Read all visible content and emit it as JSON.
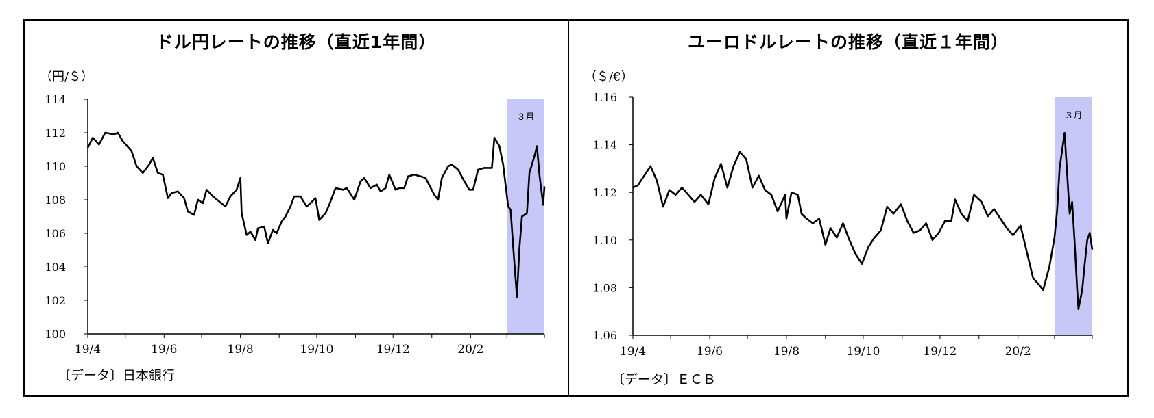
{
  "colors": {
    "line": "#000000",
    "highlight": "#c8c8f8",
    "axis": "#000000"
  },
  "chart_data": [
    {
      "type": "line",
      "title": "ドル円レートの推移（直近1年間）",
      "ylabel": "（円/＄）",
      "source": "〔データ〕日本銀行",
      "highlight_label": "３月",
      "highlight_range": [
        "2020-03-01",
        "2020-03-31"
      ],
      "y_ticks": [
        "114",
        "112",
        "110",
        "108",
        "106",
        "104",
        "102",
        "100"
      ],
      "ylim": [
        100,
        114
      ],
      "xlim": [
        "2019-04-01",
        "2020-03-31"
      ],
      "x_ticks": [
        {
          "label": "19/4",
          "date": "2019-04-01"
        },
        {
          "label": "19/6",
          "date": "2019-06-01"
        },
        {
          "label": "19/8",
          "date": "2019-08-01"
        },
        {
          "label": "19/10",
          "date": "2019-10-01"
        },
        {
          "label": "19/12",
          "date": "2019-12-01"
        },
        {
          "label": "20/2",
          "date": "2020-02-01"
        }
      ],
      "legend": "none",
      "grid": false,
      "series": [
        {
          "points": [
            [
              "2019-04-01",
              111.1
            ],
            [
              "2019-04-05",
              111.7
            ],
            [
              "2019-04-10",
              111.3
            ],
            [
              "2019-04-15",
              112.0
            ],
            [
              "2019-04-22",
              111.9
            ],
            [
              "2019-04-25",
              112.0
            ],
            [
              "2019-04-29",
              111.5
            ],
            [
              "2019-05-06",
              110.9
            ],
            [
              "2019-05-10",
              110.0
            ],
            [
              "2019-05-15",
              109.6
            ],
            [
              "2019-05-20",
              110.1
            ],
            [
              "2019-05-23",
              110.5
            ],
            [
              "2019-05-27",
              109.6
            ],
            [
              "2019-05-31",
              109.5
            ],
            [
              "2019-06-04",
              108.1
            ],
            [
              "2019-06-07",
              108.4
            ],
            [
              "2019-06-12",
              108.5
            ],
            [
              "2019-06-17",
              108.1
            ],
            [
              "2019-06-20",
              107.3
            ],
            [
              "2019-06-25",
              107.1
            ],
            [
              "2019-06-28",
              108.0
            ],
            [
              "2019-07-02",
              107.8
            ],
            [
              "2019-07-05",
              108.6
            ],
            [
              "2019-07-10",
              108.2
            ],
            [
              "2019-07-15",
              107.9
            ],
            [
              "2019-07-20",
              107.6
            ],
            [
              "2019-07-24",
              108.2
            ],
            [
              "2019-07-29",
              108.6
            ],
            [
              "2019-08-01",
              109.3
            ],
            [
              "2019-08-02",
              107.2
            ],
            [
              "2019-08-06",
              105.9
            ],
            [
              "2019-08-09",
              106.1
            ],
            [
              "2019-08-13",
              105.6
            ],
            [
              "2019-08-15",
              106.3
            ],
            [
              "2019-08-20",
              106.4
            ],
            [
              "2019-08-23",
              105.4
            ],
            [
              "2019-08-27",
              106.2
            ],
            [
              "2019-08-30",
              106.0
            ],
            [
              "2019-09-03",
              106.7
            ],
            [
              "2019-09-06",
              107.0
            ],
            [
              "2019-09-10",
              107.6
            ],
            [
              "2019-09-13",
              108.2
            ],
            [
              "2019-09-18",
              108.2
            ],
            [
              "2019-09-23",
              107.6
            ],
            [
              "2019-09-26",
              107.8
            ],
            [
              "2019-09-30",
              108.1
            ],
            [
              "2019-10-03",
              106.8
            ],
            [
              "2019-10-08",
              107.2
            ],
            [
              "2019-10-11",
              107.7
            ],
            [
              "2019-10-16",
              108.7
            ],
            [
              "2019-10-22",
              108.6
            ],
            [
              "2019-10-25",
              108.7
            ],
            [
              "2019-10-31",
              108.0
            ],
            [
              "2019-11-05",
              109.1
            ],
            [
              "2019-11-08",
              109.3
            ],
            [
              "2019-11-13",
              108.7
            ],
            [
              "2019-11-18",
              108.9
            ],
            [
              "2019-11-21",
              108.5
            ],
            [
              "2019-11-25",
              108.7
            ],
            [
              "2019-11-28",
              109.5
            ],
            [
              "2019-12-03",
              108.6
            ],
            [
              "2019-12-06",
              108.7
            ],
            [
              "2019-12-10",
              108.7
            ],
            [
              "2019-12-13",
              109.4
            ],
            [
              "2019-12-18",
              109.5
            ],
            [
              "2019-12-23",
              109.4
            ],
            [
              "2019-12-27",
              109.3
            ],
            [
              "2020-01-03",
              108.3
            ],
            [
              "2020-01-06",
              108.0
            ],
            [
              "2020-01-09",
              109.3
            ],
            [
              "2020-01-14",
              110.0
            ],
            [
              "2020-01-17",
              110.1
            ],
            [
              "2020-01-22",
              109.8
            ],
            [
              "2020-01-27",
              109.1
            ],
            [
              "2020-01-31",
              108.6
            ],
            [
              "2020-02-03",
              108.6
            ],
            [
              "2020-02-07",
              109.8
            ],
            [
              "2020-02-12",
              109.9
            ],
            [
              "2020-02-18",
              109.9
            ],
            [
              "2020-02-20",
              111.7
            ],
            [
              "2020-02-24",
              111.2
            ],
            [
              "2020-02-27",
              110.1
            ],
            [
              "2020-03-02",
              107.6
            ],
            [
              "2020-03-04",
              107.4
            ],
            [
              "2020-03-06",
              105.2
            ],
            [
              "2020-03-09",
              102.2
            ],
            [
              "2020-03-11",
              105.1
            ],
            [
              "2020-03-13",
              107.0
            ],
            [
              "2020-03-17",
              107.2
            ],
            [
              "2020-03-19",
              109.6
            ],
            [
              "2020-03-23",
              110.6
            ],
            [
              "2020-03-25",
              111.2
            ],
            [
              "2020-03-27",
              109.5
            ],
            [
              "2020-03-30",
              107.7
            ],
            [
              "2020-03-31",
              108.8
            ]
          ]
        }
      ]
    },
    {
      "type": "line",
      "title": "ユーロドルレートの推移（直近１年間）",
      "ylabel": "（＄/€）",
      "source": "〔データ〕ＥＣＢ",
      "highlight_label": "３月",
      "highlight_range": [
        "2020-03-01",
        "2020-03-31"
      ],
      "y_ticks": [
        "1.16",
        "1.14",
        "1.12",
        "1.10",
        "1.08",
        "1.06"
      ],
      "ylim": [
        1.06,
        1.16
      ],
      "xlim": [
        "2019-04-01",
        "2020-03-31"
      ],
      "x_ticks": [
        {
          "label": "19/4",
          "date": "2019-04-01"
        },
        {
          "label": "19/6",
          "date": "2019-06-01"
        },
        {
          "label": "19/8",
          "date": "2019-08-01"
        },
        {
          "label": "19/10",
          "date": "2019-10-01"
        },
        {
          "label": "19/12",
          "date": "2019-12-01"
        },
        {
          "label": "20/2",
          "date": "2020-02-01"
        }
      ],
      "legend": "none",
      "grid": false,
      "series": [
        {
          "points": [
            [
              "2019-04-01",
              1.122
            ],
            [
              "2019-04-05",
              1.123
            ],
            [
              "2019-04-10",
              1.127
            ],
            [
              "2019-04-15",
              1.131
            ],
            [
              "2019-04-20",
              1.125
            ],
            [
              "2019-04-25",
              1.114
            ],
            [
              "2019-04-30",
              1.121
            ],
            [
              "2019-05-05",
              1.119
            ],
            [
              "2019-05-10",
              1.122
            ],
            [
              "2019-05-15",
              1.119
            ],
            [
              "2019-05-20",
              1.116
            ],
            [
              "2019-05-25",
              1.119
            ],
            [
              "2019-05-31",
              1.115
            ],
            [
              "2019-06-05",
              1.126
            ],
            [
              "2019-06-10",
              1.132
            ],
            [
              "2019-06-15",
              1.122
            ],
            [
              "2019-06-20",
              1.131
            ],
            [
              "2019-06-25",
              1.137
            ],
            [
              "2019-06-30",
              1.134
            ],
            [
              "2019-07-05",
              1.122
            ],
            [
              "2019-07-10",
              1.127
            ],
            [
              "2019-07-15",
              1.121
            ],
            [
              "2019-07-20",
              1.119
            ],
            [
              "2019-07-25",
              1.112
            ],
            [
              "2019-07-31",
              1.119
            ],
            [
              "2019-08-01",
              1.109
            ],
            [
              "2019-08-05",
              1.12
            ],
            [
              "2019-08-10",
              1.119
            ],
            [
              "2019-08-13",
              1.111
            ],
            [
              "2019-08-17",
              1.109
            ],
            [
              "2019-08-22",
              1.107
            ],
            [
              "2019-08-27",
              1.109
            ],
            [
              "2019-09-01",
              1.098
            ],
            [
              "2019-09-05",
              1.105
            ],
            [
              "2019-09-10",
              1.101
            ],
            [
              "2019-09-15",
              1.107
            ],
            [
              "2019-09-20",
              1.1
            ],
            [
              "2019-09-25",
              1.094
            ],
            [
              "2019-09-30",
              1.09
            ],
            [
              "2019-10-05",
              1.097
            ],
            [
              "2019-10-10",
              1.101
            ],
            [
              "2019-10-15",
              1.104
            ],
            [
              "2019-10-20",
              1.114
            ],
            [
              "2019-10-25",
              1.111
            ],
            [
              "2019-10-31",
              1.115
            ],
            [
              "2019-11-05",
              1.108
            ],
            [
              "2019-11-10",
              1.103
            ],
            [
              "2019-11-15",
              1.104
            ],
            [
              "2019-11-20",
              1.107
            ],
            [
              "2019-11-25",
              1.1
            ],
            [
              "2019-11-30",
              1.103
            ],
            [
              "2019-12-05",
              1.108
            ],
            [
              "2019-12-10",
              1.108
            ],
            [
              "2019-12-13",
              1.117
            ],
            [
              "2019-12-18",
              1.111
            ],
            [
              "2019-12-23",
              1.108
            ],
            [
              "2019-12-28",
              1.119
            ],
            [
              "2020-01-03",
              1.116
            ],
            [
              "2020-01-08",
              1.11
            ],
            [
              "2020-01-13",
              1.113
            ],
            [
              "2020-01-18",
              1.109
            ],
            [
              "2020-01-23",
              1.105
            ],
            [
              "2020-01-28",
              1.102
            ],
            [
              "2020-02-03",
              1.106
            ],
            [
              "2020-02-08",
              1.095
            ],
            [
              "2020-02-13",
              1.084
            ],
            [
              "2020-02-18",
              1.081
            ],
            [
              "2020-02-21",
              1.079
            ],
            [
              "2020-02-26",
              1.089
            ],
            [
              "2020-03-01",
              1.101
            ],
            [
              "2020-03-03",
              1.112
            ],
            [
              "2020-03-05",
              1.13
            ],
            [
              "2020-03-09",
              1.145
            ],
            [
              "2020-03-11",
              1.128
            ],
            [
              "2020-03-13",
              1.111
            ],
            [
              "2020-03-15",
              1.116
            ],
            [
              "2020-03-17",
              1.099
            ],
            [
              "2020-03-19",
              1.079
            ],
            [
              "2020-03-20",
              1.071
            ],
            [
              "2020-03-23",
              1.079
            ],
            [
              "2020-03-25",
              1.09
            ],
            [
              "2020-03-27",
              1.1
            ],
            [
              "2020-03-29",
              1.103
            ],
            [
              "2020-03-31",
              1.096
            ]
          ]
        }
      ]
    }
  ]
}
